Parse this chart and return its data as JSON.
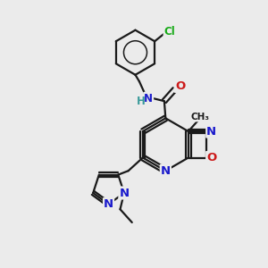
{
  "bg_color": "#ebebeb",
  "bond_color": "#1a1a1a",
  "bond_width": 1.6,
  "atom_colors": {
    "C": "#1a1a1a",
    "H": "#3a9a9a",
    "N": "#1a1acc",
    "O": "#cc1a1a",
    "Cl": "#18aa18"
  },
  "font_size": 8.5,
  "fig_size": [
    3.0,
    3.0
  ],
  "dpi": 100
}
